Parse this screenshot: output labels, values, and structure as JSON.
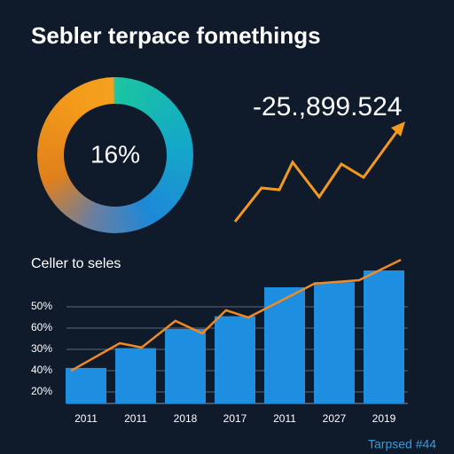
{
  "title": "Sebler terpace fomethings",
  "donut": {
    "label": "16%"
  },
  "kpi": {
    "value_text": "-25.,899.524"
  },
  "footer": "Tarpsed #44",
  "chart_data": {
    "type": "bar",
    "title": "Celler to seles",
    "categories": [
      "2011",
      "2011",
      "2018",
      "2017",
      "2011",
      "2027",
      "2019"
    ],
    "values": [
      1.67,
      2.6,
      3.5,
      4.1,
      5.46,
      5.7,
      6.25
    ],
    "color": "#1e8fe0",
    "y_labels": [
      "50%",
      "60%",
      "30%",
      "40%",
      "20%"
    ],
    "ylim": [
      0,
      7
    ],
    "trend": {
      "color": "#f08a24",
      "x": [
        -0.3,
        0.68,
        1.12,
        1.8,
        2.34,
        2.82,
        3.27,
        4.6,
        5.5,
        6.34
      ],
      "values": [
        1.54,
        2.83,
        2.63,
        3.88,
        3.29,
        4.38,
        4.04,
        5.63,
        5.79,
        6.75
      ]
    }
  }
}
